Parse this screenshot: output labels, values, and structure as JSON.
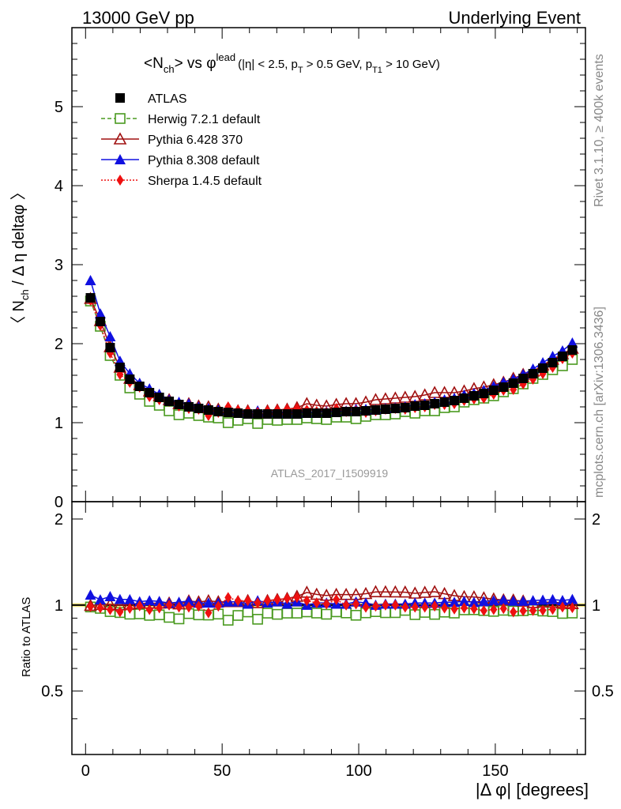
{
  "header": {
    "left_label": "13000 GeV pp",
    "right_label": "Underlying Event"
  },
  "side_labels": {
    "rivet": "Rivet 3.1.10, ≥ 400k events",
    "mcplots": "mcplots.cern.ch [arXiv:1306.3436]"
  },
  "colors": {
    "atlas": "#000000",
    "herwig": "#4a9a20",
    "pythia6": "#a01010",
    "pythia8": "#1010e0",
    "sherpa": "#ee1010",
    "watermark": "#999999"
  },
  "chart_data": {
    "type": "scatter",
    "title": "<Nch> vs φlead (|η| < 2.5, pT > 0.5 GeV, pT1 > 10 GeV)",
    "title_parts": {
      "main": "<N",
      "main_sub": "ch",
      "main_rest": "> vs φ",
      "main_sup": "lead",
      "cuts_a": "(|η| < 2.5, p",
      "cuts_sub1": "T",
      "cuts_b": " > 0.5 GeV, p",
      "cuts_sub2": "T1",
      "cuts_c": " > 10 GeV)"
    },
    "watermark": "ATLAS_2017_I1509919",
    "ylabel_parts": {
      "a": "〈 N",
      "sub": "ch",
      "b": " / Δ η deltaφ 〉"
    },
    "xlabel": "|Δ φ| [degrees]",
    "ratio_ylabel": "Ratio to ATLAS",
    "xlim": [
      -5,
      183
    ],
    "ylim": [
      0,
      6
    ],
    "ratio_ylim": [
      0.3,
      2.3
    ],
    "x_ticks": [
      0,
      50,
      100,
      150
    ],
    "y_ticks": [
      0,
      1,
      2,
      3,
      4,
      5
    ],
    "ratio_ticks": [
      0.5,
      1,
      2
    ],
    "x": [
      1.8,
      5.4,
      9.0,
      12.6,
      16.2,
      19.8,
      23.4,
      27.0,
      30.6,
      34.2,
      37.8,
      41.4,
      45.0,
      48.6,
      52.2,
      55.8,
      59.4,
      63.0,
      66.6,
      70.2,
      73.8,
      77.4,
      81.0,
      84.6,
      88.2,
      91.8,
      95.4,
      99.0,
      102.6,
      106.2,
      109.8,
      113.4,
      117.0,
      120.6,
      124.2,
      127.8,
      131.4,
      135.0,
      138.6,
      142.2,
      145.8,
      149.4,
      153.0,
      156.6,
      160.2,
      163.8,
      167.4,
      171.0,
      174.6,
      178.2
    ],
    "series": [
      {
        "name": "ATLAS",
        "marker": "square-filled",
        "line": "none",
        "values": [
          2.58,
          2.28,
          1.95,
          1.7,
          1.55,
          1.46,
          1.38,
          1.32,
          1.27,
          1.23,
          1.2,
          1.18,
          1.16,
          1.14,
          1.13,
          1.12,
          1.11,
          1.11,
          1.11,
          1.11,
          1.11,
          1.11,
          1.12,
          1.12,
          1.12,
          1.13,
          1.14,
          1.14,
          1.15,
          1.16,
          1.17,
          1.18,
          1.19,
          1.21,
          1.22,
          1.24,
          1.26,
          1.28,
          1.31,
          1.34,
          1.37,
          1.41,
          1.45,
          1.5,
          1.56,
          1.62,
          1.69,
          1.76,
          1.84,
          1.92
        ]
      },
      {
        "name": "Herwig 7.2.1 default",
        "marker": "square-open",
        "line": "dashed",
        "values": [
          2.54,
          2.22,
          1.85,
          1.6,
          1.44,
          1.36,
          1.27,
          1.22,
          1.15,
          1.1,
          1.12,
          1.09,
          1.07,
          1.06,
          1.0,
          1.03,
          1.05,
          0.99,
          1.04,
          1.03,
          1.04,
          1.04,
          1.06,
          1.05,
          1.04,
          1.07,
          1.07,
          1.05,
          1.08,
          1.1,
          1.1,
          1.11,
          1.14,
          1.12,
          1.15,
          1.15,
          1.19,
          1.2,
          1.26,
          1.29,
          1.31,
          1.34,
          1.39,
          1.43,
          1.49,
          1.56,
          1.61,
          1.67,
          1.72,
          1.8
        ]
      },
      {
        "name": "Pythia 6.428 370",
        "marker": "triangle-open",
        "line": "solid",
        "values": [
          2.57,
          2.29,
          1.96,
          1.7,
          1.56,
          1.48,
          1.4,
          1.34,
          1.29,
          1.24,
          1.24,
          1.21,
          1.2,
          1.17,
          1.16,
          1.15,
          1.15,
          1.13,
          1.15,
          1.16,
          1.17,
          1.19,
          1.24,
          1.22,
          1.21,
          1.23,
          1.24,
          1.24,
          1.26,
          1.29,
          1.3,
          1.31,
          1.32,
          1.33,
          1.35,
          1.38,
          1.38,
          1.38,
          1.4,
          1.43,
          1.45,
          1.48,
          1.51,
          1.56,
          1.61,
          1.65,
          1.73,
          1.8,
          1.87,
          1.94
        ]
      },
      {
        "name": "Pythia 8.308 default",
        "marker": "triangle-filled",
        "line": "solid",
        "values": [
          2.8,
          2.38,
          2.09,
          1.78,
          1.62,
          1.5,
          1.43,
          1.36,
          1.29,
          1.26,
          1.24,
          1.2,
          1.18,
          1.16,
          1.16,
          1.15,
          1.12,
          1.15,
          1.13,
          1.14,
          1.12,
          1.14,
          1.12,
          1.14,
          1.14,
          1.14,
          1.15,
          1.17,
          1.17,
          1.16,
          1.18,
          1.19,
          1.2,
          1.23,
          1.24,
          1.26,
          1.29,
          1.31,
          1.35,
          1.37,
          1.41,
          1.46,
          1.51,
          1.55,
          1.61,
          1.68,
          1.76,
          1.84,
          1.91,
          2.01
        ]
      },
      {
        "name": "Sherpa 1.4.5 default",
        "marker": "diamond-filled",
        "line": "dotted",
        "values": [
          2.55,
          2.23,
          1.88,
          1.61,
          1.51,
          1.45,
          1.33,
          1.29,
          1.27,
          1.21,
          1.18,
          1.17,
          1.09,
          1.13,
          1.2,
          1.16,
          1.15,
          1.13,
          1.15,
          1.16,
          1.17,
          1.18,
          1.16,
          1.14,
          1.13,
          1.18,
          1.14,
          1.15,
          1.13,
          1.15,
          1.17,
          1.18,
          1.17,
          1.19,
          1.2,
          1.23,
          1.23,
          1.24,
          1.28,
          1.3,
          1.31,
          1.36,
          1.41,
          1.42,
          1.49,
          1.55,
          1.62,
          1.7,
          1.81,
          1.88
        ]
      }
    ]
  }
}
